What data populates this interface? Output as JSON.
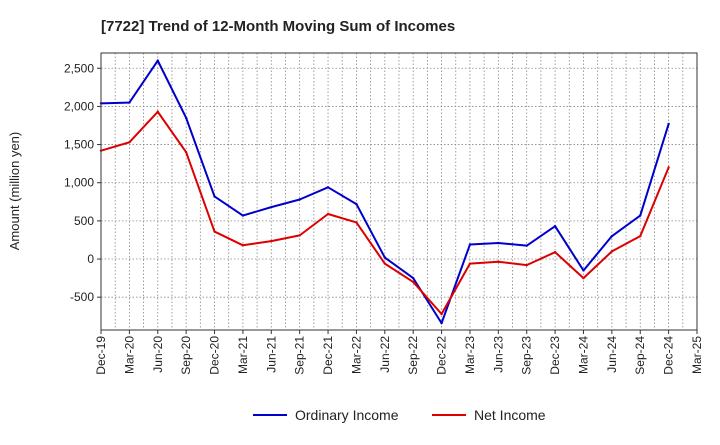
{
  "chart_data": {
    "type": "line",
    "title": "[7722]  Trend of 12-Month Moving Sum of Incomes",
    "xlabel": "",
    "ylabel": "Amount (million yen)",
    "categories": [
      "Dec-19",
      "Mar-20",
      "Jun-20",
      "Sep-20",
      "Dec-20",
      "Mar-21",
      "Jun-21",
      "Sep-21",
      "Dec-21",
      "Mar-22",
      "Jun-22",
      "Sep-22",
      "Dec-22",
      "Mar-23",
      "Jun-23",
      "Sep-23",
      "Dec-23",
      "Mar-24",
      "Jun-24",
      "Sep-24",
      "Dec-24",
      "Mar-25"
    ],
    "ylim": [
      -930,
      2700
    ],
    "yticks": [
      2500,
      2000,
      1500,
      1000,
      500,
      0,
      -500
    ],
    "ytick_labels": [
      "2,500",
      "2,000",
      "1,500",
      "1,000",
      "500",
      "0",
      "-500"
    ],
    "grid": true,
    "legend_position": "bottom",
    "series": [
      {
        "name": "Ordinary Income",
        "color": "#0000cc",
        "values": [
          2040,
          2050,
          2600,
          1850,
          820,
          570,
          680,
          780,
          940,
          720,
          20,
          -250,
          -840,
          190,
          210,
          175,
          430,
          -150,
          300,
          570,
          1770,
          null
        ]
      },
      {
        "name": "Net Income",
        "color": "#dd0000",
        "values": [
          1420,
          1530,
          1930,
          1400,
          360,
          180,
          235,
          310,
          590,
          480,
          -60,
          -300,
          -720,
          -60,
          -35,
          -80,
          90,
          -250,
          100,
          300,
          1200,
          null
        ]
      }
    ]
  }
}
